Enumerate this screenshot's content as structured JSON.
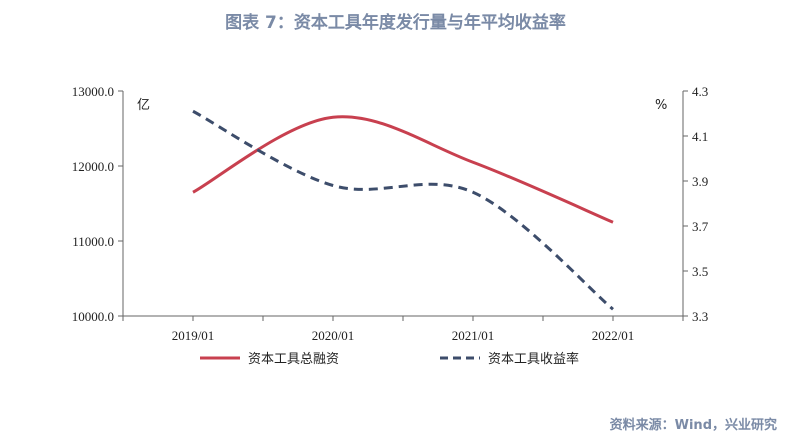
{
  "title": "图表 7：资本工具年度发行量与年平均收益率",
  "source": "资料来源：Wind，兴业研究",
  "colors": {
    "series1": "#c8404f",
    "series2": "#3d4d6b",
    "title": "#7a8aa6"
  },
  "chart_data": {
    "type": "line",
    "categories": [
      "2019/01",
      "2020/01",
      "2021/01",
      "2022/01"
    ],
    "x_tick_labels": [
      "2019/01",
      "2020/01",
      "2021/01",
      "2022/01"
    ],
    "y_left": {
      "unit": "亿",
      "ticks": [
        "13000.0",
        "12000.0",
        "11000.0",
        "10000.0"
      ],
      "min": 10000,
      "max": 13000
    },
    "y_right": {
      "unit": "%",
      "ticks": [
        "4.3",
        "4.1",
        "3.9",
        "3.7",
        "3.5",
        "3.3"
      ],
      "min": 3.3,
      "max": 4.3
    },
    "grid": false,
    "legend_position": "bottom",
    "series": [
      {
        "name": "资本工具总融资",
        "axis": "left",
        "style": "solid",
        "values": [
          11650,
          12650,
          12050,
          11250
        ]
      },
      {
        "name": "资本工具收益率",
        "axis": "right",
        "style": "dashed",
        "values": [
          4.21,
          3.88,
          3.85,
          3.33
        ]
      }
    ]
  }
}
